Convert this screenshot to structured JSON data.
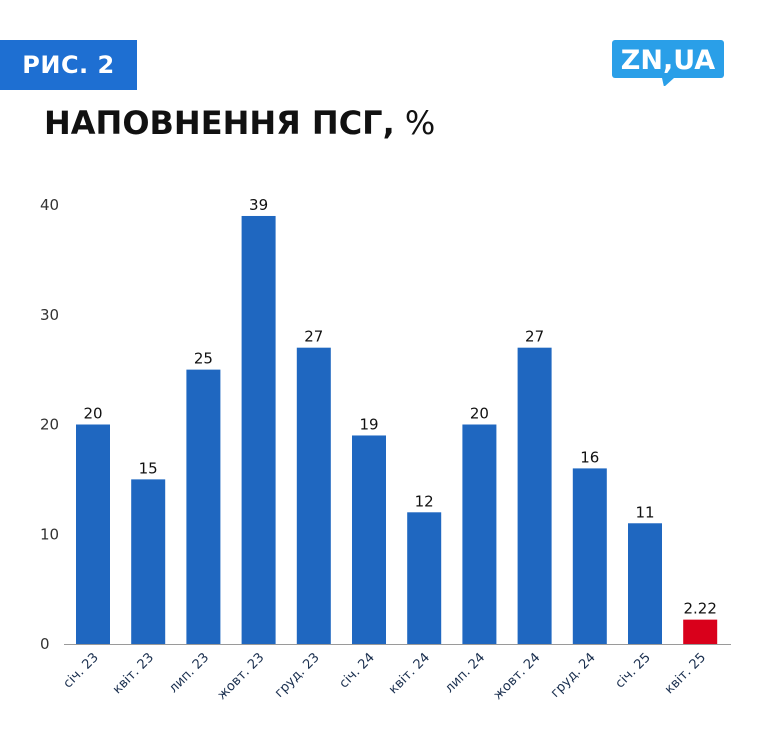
{
  "header": {
    "figure_label": "РИС. 2",
    "logo_text": "ZN,UA",
    "title": "НАПОВНЕННЯ ПСГ,",
    "title_unit": " %"
  },
  "colors": {
    "accent": "#1e6fd2",
    "bar": "#1f67c0",
    "highlight": "#d9001b",
    "logo": "#2a9fe8"
  },
  "chart_data": {
    "type": "bar",
    "title": "НАПОВНЕННЯ ПСГ, %",
    "xlabel": "",
    "ylabel": "",
    "categories": [
      "січ. 23",
      "квіт. 23",
      "лип. 23",
      "жовт. 23",
      "груд. 23",
      "січ. 24",
      "квіт. 24",
      "лип. 24",
      "жовт. 24",
      "груд. 24",
      "січ. 25",
      "квіт. 25"
    ],
    "values": [
      20,
      15,
      25,
      39,
      27,
      19,
      12,
      20,
      27,
      16,
      11,
      2.22
    ],
    "data_labels": [
      "20",
      "15",
      "25",
      "39",
      "27",
      "19",
      "12",
      "20",
      "27",
      "16",
      "11",
      "2.22"
    ],
    "highlight_index": 11,
    "ylim": [
      0,
      40
    ],
    "yticks": [
      0,
      10,
      20,
      30,
      40
    ],
    "grid": false,
    "legend": "none"
  }
}
